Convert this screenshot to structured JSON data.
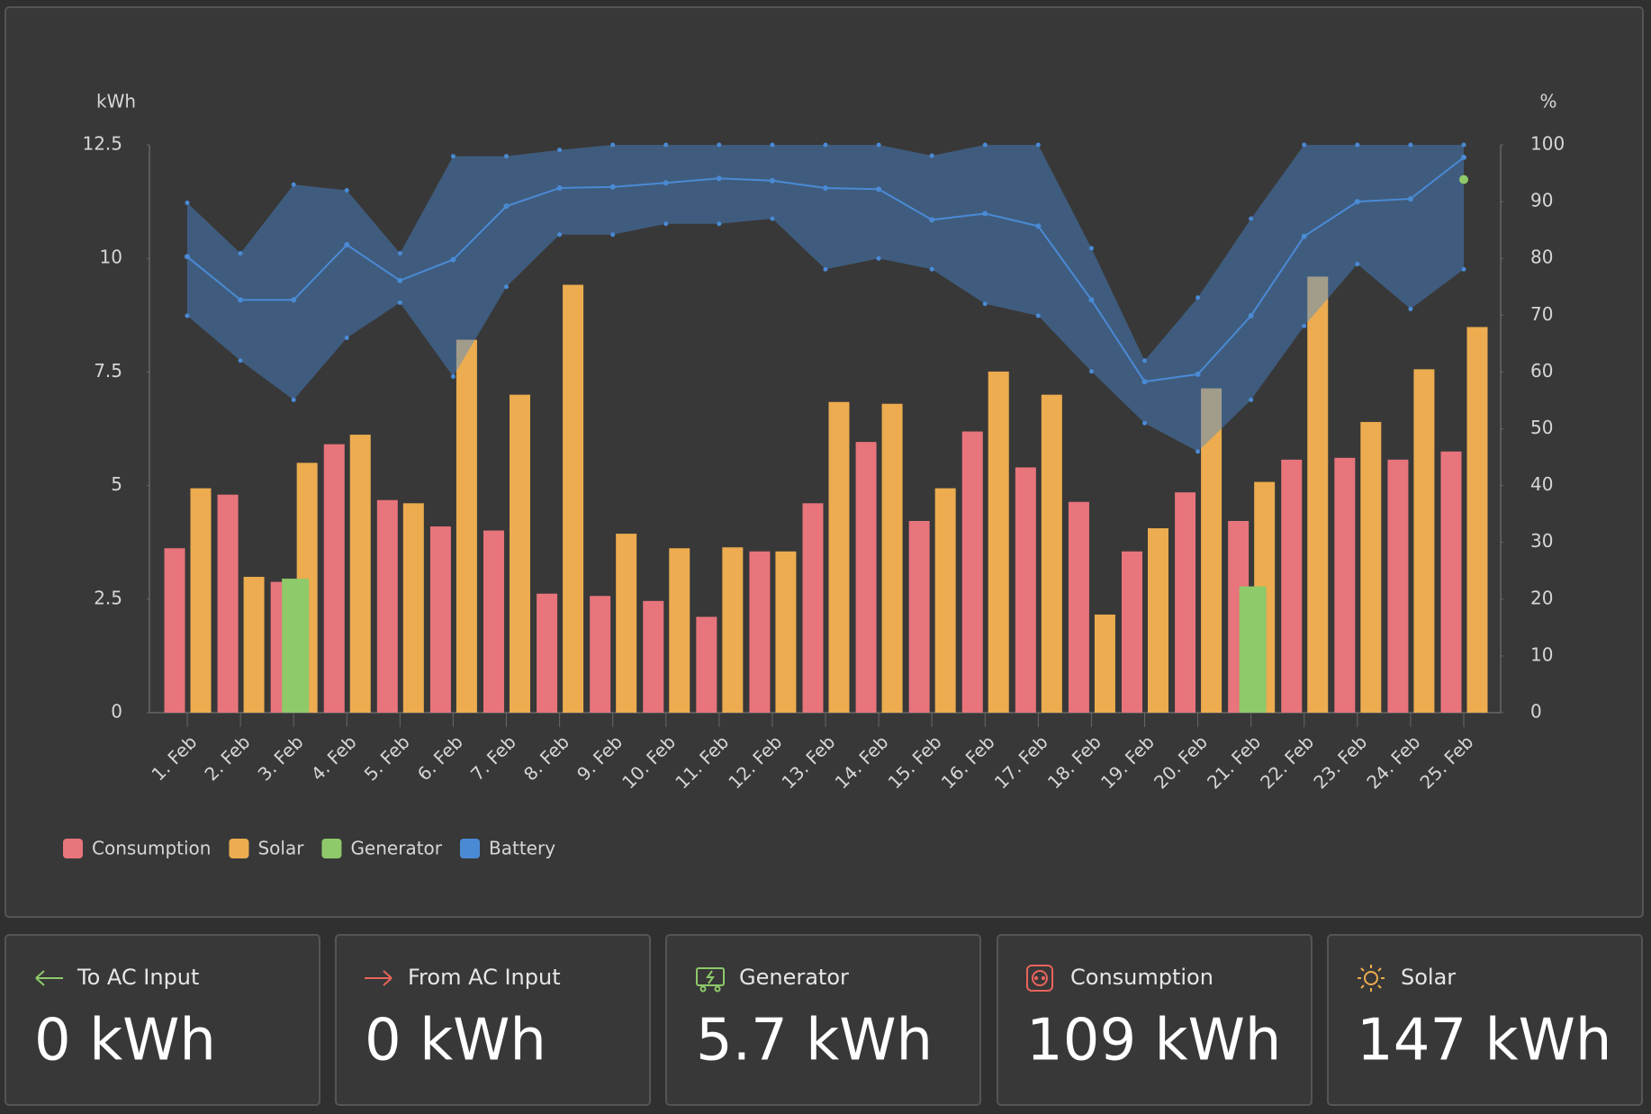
{
  "chart_data": {
    "type": "bar",
    "y_label": "kWh",
    "y2_label": "%",
    "categories": [
      "1. Feb",
      "2. Feb",
      "3. Feb",
      "4. Feb",
      "5. Feb",
      "6. Feb",
      "7. Feb",
      "8. Feb",
      "9. Feb",
      "10. Feb",
      "11. Feb",
      "12. Feb",
      "13. Feb",
      "14. Feb",
      "15. Feb",
      "16. Feb",
      "17. Feb",
      "18. Feb",
      "19. Feb",
      "20. Feb",
      "21. Feb",
      "22. Feb",
      "23. Feb",
      "24. Feb",
      "25. Feb"
    ],
    "ylim": [
      0,
      12.5
    ],
    "yticks": [
      0,
      2.5,
      5,
      7.5,
      10,
      12.5
    ],
    "y2lim": [
      0,
      100
    ],
    "y2ticks": [
      0,
      10,
      20,
      30,
      40,
      50,
      60,
      70,
      80,
      90,
      100
    ],
    "series": [
      {
        "name": "Consumption",
        "color": "#e8747c",
        "values": [
          3.62,
          4.8,
          2.88,
          5.91,
          4.68,
          4.1,
          4.01,
          2.62,
          2.57,
          2.46,
          2.11,
          3.55,
          4.61,
          5.96,
          4.22,
          6.19,
          5.4,
          4.64,
          3.55,
          4.85,
          4.22,
          5.57,
          5.61,
          5.57,
          5.75
        ]
      },
      {
        "name": "Solar",
        "color": "#ecac4f",
        "values": [
          4.94,
          2.99,
          5.5,
          6.12,
          4.61,
          8.21,
          7.0,
          9.42,
          3.94,
          3.62,
          3.64,
          3.55,
          6.84,
          6.8,
          4.94,
          7.51,
          7.0,
          2.16,
          4.06,
          7.14,
          5.08,
          9.6,
          6.4,
          7.56,
          8.49
        ]
      },
      {
        "name": "Generator",
        "color": "#8ec96a",
        "values": [
          null,
          null,
          2.95,
          null,
          null,
          null,
          null,
          null,
          null,
          null,
          null,
          null,
          null,
          null,
          null,
          null,
          null,
          null,
          null,
          null,
          2.78,
          null,
          null,
          null,
          null
        ]
      },
      {
        "name": "Battery",
        "color": "#4a8ad4",
        "axis": "y2",
        "values": [
          80.3,
          72.7,
          72.7,
          82.4,
          76.1,
          79.8,
          89.2,
          92.4,
          92.6,
          93.3,
          94.1,
          93.7,
          92.4,
          92.2,
          86.8,
          87.9,
          85.7,
          72.7,
          58.3,
          59.6,
          69.9,
          83.9,
          90.0,
          90.5,
          97.8
        ],
        "max": [
          89.8,
          80.9,
          93.0,
          92.0,
          80.9,
          98.0,
          98.0,
          99.1,
          100,
          100,
          100,
          100,
          100,
          100,
          98.1,
          100,
          100,
          81.8,
          62.0,
          73.1,
          87.0,
          100,
          100,
          100,
          100
        ],
        "min": [
          69.9,
          62.0,
          55.1,
          66.0,
          72.2,
          59.2,
          75.0,
          84.2,
          84.2,
          86.1,
          86.1,
          87.0,
          78.1,
          80.0,
          78.1,
          72.0,
          69.9,
          60.1,
          51.0,
          46.0,
          55.1,
          68.1,
          79.0,
          71.1,
          78.1
        ]
      },
      {
        "color": "#8ec96a",
        "axis": "y2",
        "values": [
          null,
          null,
          null,
          null,
          null,
          null,
          null,
          null,
          null,
          null,
          null,
          null,
          null,
          null,
          null,
          null,
          null,
          null,
          null,
          null,
          null,
          null,
          null,
          null,
          93.9
        ]
      }
    ]
  },
  "cards": [
    {
      "label": "To AC Input",
      "value": "0 kWh"
    },
    {
      "label": "From AC Input",
      "value": "0 kWh"
    },
    {
      "label": "Generator",
      "value": "5.7 kWh"
    },
    {
      "label": "Consumption",
      "value": "109 kWh"
    },
    {
      "label": "Solar",
      "value": "147 kWh"
    }
  ]
}
